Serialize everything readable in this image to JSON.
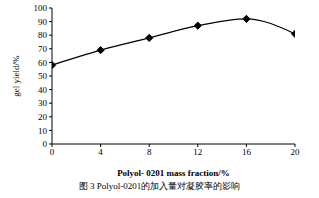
{
  "chart_data": {
    "type": "line",
    "title": "图 3 Polyol-0201的加入量对凝胶率的影响",
    "x_label": "Polyol- 0201 mass fraction/%",
    "y_label": "gel yield/%",
    "x": [
      0,
      4,
      8,
      12,
      16,
      20
    ],
    "series": [
      {
        "name": "gel yield",
        "color": "#000000",
        "values": [
          58,
          69,
          78,
          87,
          92,
          81
        ],
        "marker": "diamond",
        "line_style": "solid"
      }
    ],
    "xlim": [
      0,
      20
    ],
    "xticks": [
      0,
      4,
      8,
      12,
      16,
      20
    ],
    "ylim": [
      0,
      100
    ],
    "yticks": [
      0,
      10,
      20,
      30,
      40,
      50,
      60,
      70,
      80,
      90,
      100
    ],
    "grid": false
  }
}
